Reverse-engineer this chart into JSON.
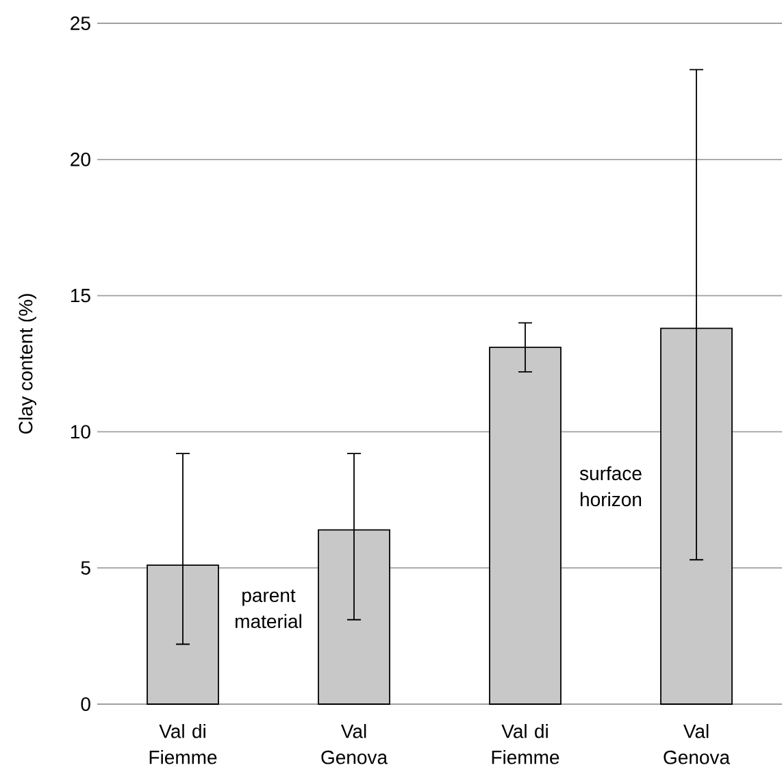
{
  "chart_data": {
    "type": "bar",
    "ylabel": "Clay content (%)",
    "categories": [
      "Val di Fiemme",
      "Val Genova",
      "Val di Fiemme",
      "Val Genova"
    ],
    "values": [
      5.1,
      6.4,
      13.1,
      13.8
    ],
    "errors": [
      [
        2.2,
        9.2
      ],
      [
        3.1,
        9.2
      ],
      [
        12.2,
        14.0
      ],
      [
        5.3,
        23.3
      ]
    ],
    "color": "#c8c8c8",
    "ylim": [
      0,
      25
    ],
    "yticks": [
      0,
      5,
      10,
      15,
      20,
      25
    ],
    "grid": "y",
    "annotations": [
      "parent material",
      "surface horizon"
    ]
  }
}
